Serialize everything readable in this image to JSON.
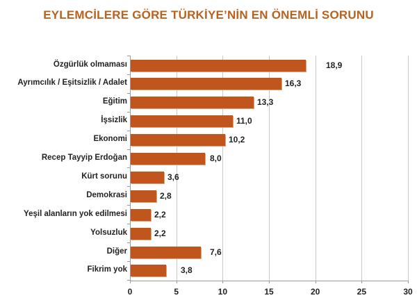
{
  "title": "EYLEMCİLERE GÖRE TÜRKİYE’NİN EN ÖNEMLİ SORUNU",
  "colors": {
    "bar": "#c0561d",
    "title": "#b8621f",
    "grid": "#c8c8c8"
  },
  "chart_data": {
    "type": "bar",
    "orientation": "horizontal",
    "title": "EYLEMCİLERE GÖRE TÜRKİYE’NİN EN ÖNEMLİ SORUNU",
    "xlabel": "",
    "ylabel": "",
    "categories": [
      "Özgürlük olmaması",
      "Ayrımcılık / Eşitsizlik / Adalet",
      "Eğitim",
      "İşsizlik",
      "Ekonomi",
      "Recep Tayyip Erdoğan",
      "Kürt sorunu",
      "Demokrasi",
      "Yeşil alanların yok edilmesi",
      "Yolsuzluk",
      "Diğer",
      "Fikrim yok"
    ],
    "values": [
      18.9,
      16.3,
      13.3,
      11.0,
      10.2,
      8.0,
      3.6,
      2.8,
      2.2,
      2.2,
      7.6,
      3.8
    ],
    "value_labels": [
      "18,9",
      "16,3",
      "13,3",
      "11,0",
      "10,2",
      "8,0",
      "3,6",
      "2,8",
      "2,2",
      "2,2",
      "7,6",
      "3,8"
    ],
    "xlim": [
      0,
      30
    ],
    "xticks": [
      "0",
      "5",
      "10",
      "15",
      "20",
      "25",
      "30"
    ],
    "grid": "vertical",
    "legend": "none"
  }
}
